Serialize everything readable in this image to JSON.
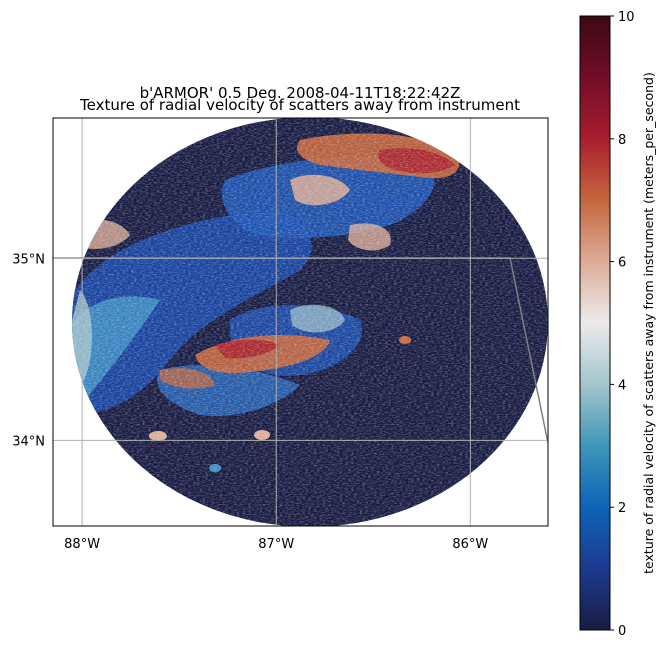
{
  "title_line1": "b'ARMOR' 0.5 Deg. 2008-04-11T18:22:42Z",
  "title_line2": "Texture of radial velocity of scatters away from instrument",
  "map": {
    "lon_ticks": [
      {
        "value": -88,
        "label": "88°W"
      },
      {
        "value": -87,
        "label": "87°W"
      },
      {
        "value": -86,
        "label": "86°W"
      }
    ],
    "lat_ticks": [
      {
        "value": 35,
        "label": "35°N"
      },
      {
        "value": 34,
        "label": "34°N"
      }
    ],
    "lon_range": [
      -88.15,
      -85.6
    ],
    "lat_range": [
      33.53,
      35.77
    ],
    "gridlines": true,
    "background_color": "#181c43",
    "gridline_color": "#b0b0b0",
    "boundary_color": "#808080"
  },
  "colorbar": {
    "label": "texture of radial velocity of scatters away from instrument (meters_per_second)",
    "range": [
      0,
      10
    ],
    "ticks": [
      {
        "value": 0,
        "label": "0"
      },
      {
        "value": 2,
        "label": "2"
      },
      {
        "value": 4,
        "label": "4"
      },
      {
        "value": 6,
        "label": "6"
      },
      {
        "value": 8,
        "label": "8"
      },
      {
        "value": 10,
        "label": "10"
      }
    ],
    "colormap_stops": [
      "#181c43",
      "#1d3a8f",
      "#0c64b7",
      "#3f96ba",
      "#a3c5cc",
      "#ecebeb",
      "#dcac97",
      "#c6673e",
      "#a81e2e",
      "#720d28",
      "#3c0912"
    ]
  },
  "chart_data": {
    "type": "heatmap",
    "title": "b'ARMOR' 0.5 Deg. 2008-04-11T18:22:42Z — Texture of radial velocity of scatters away from instrument",
    "value_range": [
      0,
      10
    ],
    "regions": [
      {
        "lon": -87.6,
        "lat": 35.1,
        "value": 2.2
      },
      {
        "lon": -87.3,
        "lat": 34.9,
        "value": 1.8
      },
      {
        "lon": -87.7,
        "lat": 34.6,
        "value": 2.0
      },
      {
        "lon": -87.9,
        "lat": 34.4,
        "value": 2.5
      },
      {
        "lon": -86.9,
        "lat": 35.4,
        "value": 2.0
      },
      {
        "lon": -86.5,
        "lat": 35.3,
        "value": 2.3
      },
      {
        "lon": -86.9,
        "lat": 34.55,
        "value": 7.0
      },
      {
        "lon": -86.6,
        "lat": 34.7,
        "value": 3.5
      },
      {
        "lon": -86.3,
        "lat": 35.6,
        "value": 7.5
      },
      {
        "lon": -86.1,
        "lat": 35.5,
        "value": 8.0
      },
      {
        "lon": -88.05,
        "lat": 34.85,
        "value": 7.5
      }
    ]
  }
}
